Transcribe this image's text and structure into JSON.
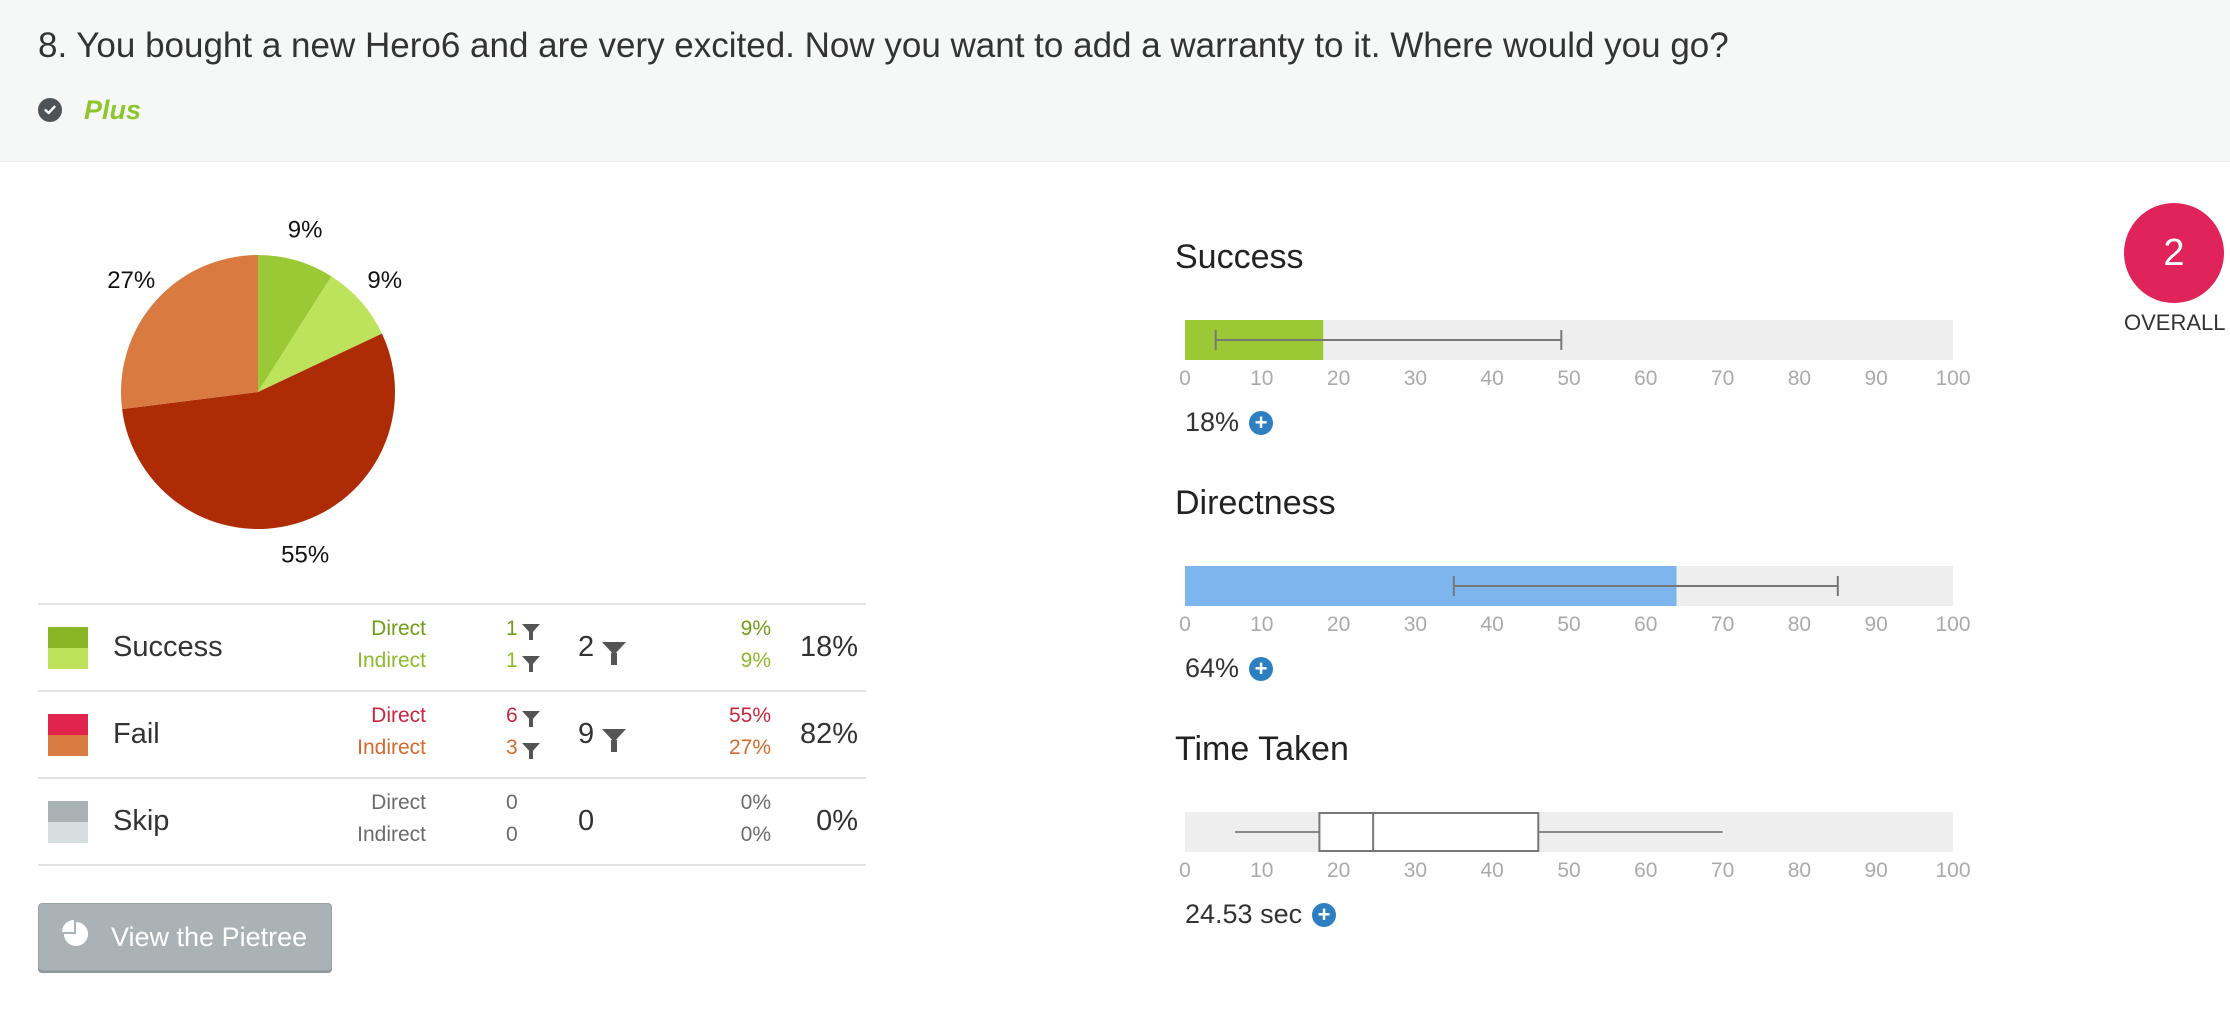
{
  "question": {
    "title": "8. You bought a new Hero6 and are very excited. Now you want to add a warranty to it. Where would you go?",
    "tag": "Plus",
    "tag_icon": "check-circle-icon"
  },
  "colors": {
    "success_direct": "#9bc935",
    "success_indirect": "#bde35d",
    "fail_direct": "#e1244d",
    "fail_indirect": "#d97a40",
    "pie_fail_direct": "#ad2c05",
    "skip_direct": "#a9b3b6",
    "skip_indirect": "#d5dfe0",
    "directness_bar": "#7db6ee",
    "overall_badge": "#e0245a"
  },
  "chart_data": {
    "type": "pie",
    "slices": [
      {
        "label": "9%",
        "value": 9,
        "category": "Success Direct"
      },
      {
        "label": "9%",
        "value": 9,
        "category": "Success Indirect"
      },
      {
        "label": "55%",
        "value": 55,
        "category": "Fail Direct"
      },
      {
        "label": "27%",
        "value": 27,
        "category": "Fail Indirect"
      }
    ]
  },
  "legend": {
    "rows": [
      {
        "name": "Success",
        "direct_label": "Direct",
        "indirect_label": "Indirect",
        "direct_count": "1",
        "indirect_count": "1",
        "total": "2",
        "direct_pct": "9%",
        "indirect_pct": "9%",
        "total_pct": "18%",
        "color": "#8ab524",
        "color2": "#9bc935"
      },
      {
        "name": "Fail",
        "direct_label": "Direct",
        "indirect_label": "Indirect",
        "direct_count": "6",
        "indirect_count": "3",
        "total": "9",
        "direct_pct": "55%",
        "indirect_pct": "27%",
        "total_pct": "82%",
        "color": "#c8263f",
        "color2": "#d26b2c"
      },
      {
        "name": "Skip",
        "direct_label": "Direct",
        "indirect_label": "Indirect",
        "direct_count": "0",
        "indirect_count": "0",
        "total": "0",
        "direct_pct": "0%",
        "indirect_pct": "0%",
        "total_pct": "0%",
        "color": "#6b6b6b",
        "color2": "#6b6b6b"
      }
    ]
  },
  "pietree_button": {
    "label": "View the Pietree",
    "icon": "pie-chart-icon"
  },
  "metrics": {
    "axis_ticks": [
      "0",
      "10",
      "20",
      "30",
      "40",
      "50",
      "60",
      "70",
      "80",
      "90",
      "100"
    ],
    "success": {
      "title": "Success",
      "value": 18,
      "whisker_low": 4,
      "whisker_high": 49,
      "display": "18%"
    },
    "directness": {
      "title": "Directness",
      "value": 64,
      "whisker_low": 35,
      "whisker_high": 85,
      "display": "64%"
    },
    "time": {
      "title": "Time Taken",
      "whisker_low": 6.5,
      "q1": 17.5,
      "median": 24.5,
      "q3": 46,
      "whisker_high": 70,
      "display": "24.53 sec"
    }
  },
  "overall": {
    "score": "2",
    "label": "OVERALL"
  }
}
